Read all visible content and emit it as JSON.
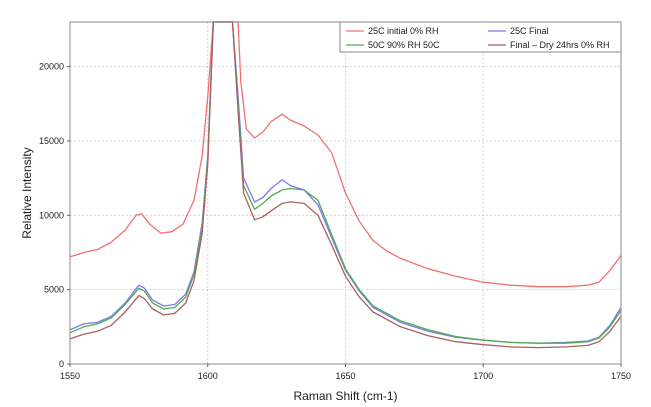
{
  "chart_data": {
    "type": "line",
    "xlabel": "Raman Shift (cm-1)",
    "ylabel": "Relative Intensity",
    "xlim": [
      1550,
      1750
    ],
    "ylim": [
      0,
      23000
    ],
    "x_ticks": [
      "1550",
      "1600",
      "1650",
      "1700",
      "1750"
    ],
    "y_ticks": [
      "0",
      "5000",
      "10000",
      "15000",
      "20000"
    ],
    "x_tick_values": [
      1550,
      1600,
      1650,
      1700,
      1750
    ],
    "y_tick_values": [
      0,
      5000,
      10000,
      15000,
      20000
    ],
    "grid": true,
    "legend_position": "top-right",
    "series": [
      {
        "name": "25C initial 0% RH",
        "color": "#f07070",
        "points": [
          [
            1550,
            7200
          ],
          [
            1555,
            7500
          ],
          [
            1560,
            7700
          ],
          [
            1565,
            8200
          ],
          [
            1570,
            9000
          ],
          [
            1574,
            10000
          ],
          [
            1576,
            10100
          ],
          [
            1579,
            9400
          ],
          [
            1583,
            8800
          ],
          [
            1587,
            8900
          ],
          [
            1591,
            9400
          ],
          [
            1595,
            11000
          ],
          [
            1598,
            14000
          ],
          [
            1600,
            18000
          ],
          [
            1602,
            23000
          ],
          [
            1611,
            23000
          ],
          [
            1612,
            19000
          ],
          [
            1614,
            15800
          ],
          [
            1617,
            15200
          ],
          [
            1620,
            15600
          ],
          [
            1623,
            16300
          ],
          [
            1627,
            16800
          ],
          [
            1630,
            16400
          ],
          [
            1635,
            16000
          ],
          [
            1640,
            15400
          ],
          [
            1645,
            14200
          ],
          [
            1650,
            11500
          ],
          [
            1655,
            9600
          ],
          [
            1660,
            8300
          ],
          [
            1665,
            7600
          ],
          [
            1670,
            7100
          ],
          [
            1680,
            6400
          ],
          [
            1690,
            5900
          ],
          [
            1700,
            5500
          ],
          [
            1710,
            5300
          ],
          [
            1720,
            5200
          ],
          [
            1730,
            5200
          ],
          [
            1738,
            5300
          ],
          [
            1742,
            5500
          ],
          [
            1746,
            6300
          ],
          [
            1750,
            7300
          ]
        ]
      },
      {
        "name": "25C Final",
        "color": "#7a7af0",
        "points": [
          [
            1550,
            2300
          ],
          [
            1555,
            2700
          ],
          [
            1560,
            2800
          ],
          [
            1565,
            3200
          ],
          [
            1570,
            4100
          ],
          [
            1575,
            5300
          ],
          [
            1577,
            5100
          ],
          [
            1580,
            4300
          ],
          [
            1584,
            3900
          ],
          [
            1588,
            4000
          ],
          [
            1592,
            4700
          ],
          [
            1595,
            6200
          ],
          [
            1598,
            9500
          ],
          [
            1600,
            14000
          ],
          [
            1602,
            23000
          ],
          [
            1609,
            23000
          ],
          [
            1611,
            18000
          ],
          [
            1613,
            12500
          ],
          [
            1617,
            10900
          ],
          [
            1620,
            11200
          ],
          [
            1623,
            11800
          ],
          [
            1627,
            12400
          ],
          [
            1630,
            12000
          ],
          [
            1635,
            11700
          ],
          [
            1640,
            10700
          ],
          [
            1645,
            8500
          ],
          [
            1650,
            6300
          ],
          [
            1655,
            4900
          ],
          [
            1660,
            3800
          ],
          [
            1670,
            2800
          ],
          [
            1680,
            2200
          ],
          [
            1690,
            1800
          ],
          [
            1700,
            1600
          ],
          [
            1710,
            1450
          ],
          [
            1720,
            1400
          ],
          [
            1730,
            1450
          ],
          [
            1738,
            1550
          ],
          [
            1742,
            1800
          ],
          [
            1746,
            2600
          ],
          [
            1750,
            3800
          ]
        ]
      },
      {
        "name": "50C 90% RH 50C",
        "color": "#55aa55",
        "points": [
          [
            1550,
            2100
          ],
          [
            1555,
            2500
          ],
          [
            1560,
            2700
          ],
          [
            1565,
            3100
          ],
          [
            1570,
            4000
          ],
          [
            1575,
            5100
          ],
          [
            1577,
            4900
          ],
          [
            1580,
            4100
          ],
          [
            1584,
            3700
          ],
          [
            1588,
            3800
          ],
          [
            1592,
            4500
          ],
          [
            1595,
            6000
          ],
          [
            1598,
            9200
          ],
          [
            1600,
            13800
          ],
          [
            1602,
            23000
          ],
          [
            1609,
            23000
          ],
          [
            1611,
            17500
          ],
          [
            1613,
            12000
          ],
          [
            1617,
            10400
          ],
          [
            1620,
            10800
          ],
          [
            1623,
            11300
          ],
          [
            1627,
            11700
          ],
          [
            1630,
            11800
          ],
          [
            1635,
            11700
          ],
          [
            1640,
            11000
          ],
          [
            1645,
            8700
          ],
          [
            1650,
            6400
          ],
          [
            1655,
            5000
          ],
          [
            1660,
            3900
          ],
          [
            1670,
            2900
          ],
          [
            1680,
            2300
          ],
          [
            1690,
            1850
          ],
          [
            1700,
            1600
          ],
          [
            1710,
            1450
          ],
          [
            1720,
            1400
          ],
          [
            1730,
            1400
          ],
          [
            1738,
            1500
          ],
          [
            1742,
            1750
          ],
          [
            1746,
            2500
          ],
          [
            1750,
            3600
          ]
        ]
      },
      {
        "name": "Final – Dry 24hrs 0% RH",
        "color": "#a86060",
        "points": [
          [
            1550,
            1700
          ],
          [
            1555,
            2000
          ],
          [
            1560,
            2200
          ],
          [
            1565,
            2600
          ],
          [
            1570,
            3500
          ],
          [
            1575,
            4600
          ],
          [
            1577,
            4400
          ],
          [
            1580,
            3700
          ],
          [
            1584,
            3300
          ],
          [
            1588,
            3400
          ],
          [
            1592,
            4100
          ],
          [
            1595,
            5600
          ],
          [
            1598,
            8800
          ],
          [
            1600,
            13500
          ],
          [
            1602,
            23000
          ],
          [
            1609,
            23000
          ],
          [
            1611,
            17000
          ],
          [
            1613,
            11500
          ],
          [
            1617,
            9700
          ],
          [
            1620,
            9900
          ],
          [
            1623,
            10300
          ],
          [
            1627,
            10800
          ],
          [
            1630,
            10900
          ],
          [
            1635,
            10800
          ],
          [
            1640,
            10000
          ],
          [
            1645,
            8000
          ],
          [
            1650,
            5900
          ],
          [
            1655,
            4500
          ],
          [
            1660,
            3500
          ],
          [
            1670,
            2500
          ],
          [
            1680,
            1900
          ],
          [
            1690,
            1500
          ],
          [
            1700,
            1300
          ],
          [
            1710,
            1150
          ],
          [
            1720,
            1100
          ],
          [
            1730,
            1150
          ],
          [
            1738,
            1250
          ],
          [
            1742,
            1500
          ],
          [
            1746,
            2200
          ],
          [
            1750,
            3200
          ]
        ]
      }
    ]
  }
}
